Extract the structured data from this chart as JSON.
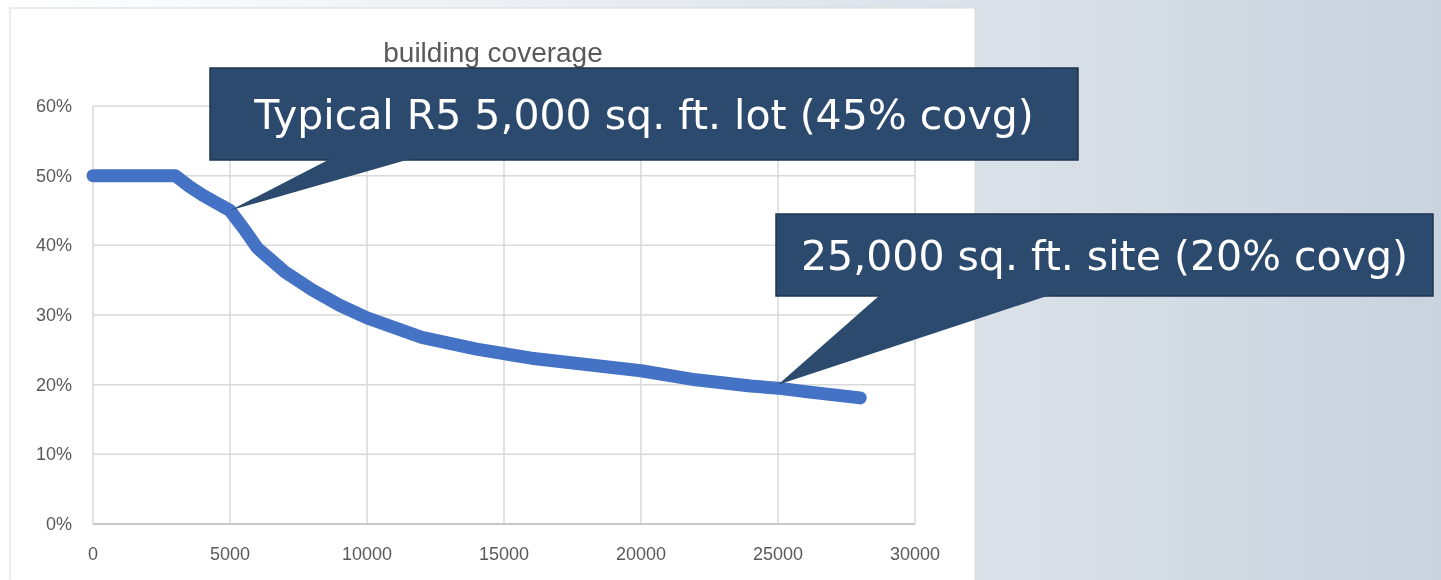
{
  "chart_data": {
    "type": "line",
    "title": "building coverage",
    "x": [
      0,
      1000,
      2000,
      3000,
      3500,
      4000,
      5000,
      5500,
      6000,
      7000,
      8000,
      9000,
      10000,
      12000,
      14000,
      16000,
      18000,
      20000,
      22000,
      24000,
      25000,
      26000,
      28000
    ],
    "series": [
      {
        "color": "#4472c4",
        "values": [
          50,
          50,
          50,
          50,
          48.5,
          47.2,
          45,
          42.4,
          39.6,
          36.2,
          33.6,
          31.4,
          29.6,
          26.8,
          25.1,
          23.8,
          22.9,
          22,
          20.7,
          19.8,
          19.5,
          19,
          18.1
        ]
      }
    ],
    "xlim": [
      0,
      30000
    ],
    "xticks": [
      0,
      5000,
      10000,
      15000,
      20000,
      25000,
      30000
    ],
    "ylim": [
      0,
      60
    ],
    "yticks": [
      {
        "value": 0,
        "label": "0%"
      },
      {
        "value": 10,
        "label": "10%"
      },
      {
        "value": 20,
        "label": "20%"
      },
      {
        "value": 30,
        "label": "30%"
      },
      {
        "value": 40,
        "label": "40%"
      },
      {
        "value": 50,
        "label": "50%"
      },
      {
        "value": 60,
        "label": "60%"
      }
    ],
    "grid": true,
    "line_style": "solid",
    "annotations": [
      {
        "text": "Typical R5 5,000 sq. ft. lot (45% covg)",
        "x": 5000,
        "y": 45
      },
      {
        "text": "25,000 sq. ft. site (20% covg)",
        "x": 25000,
        "y": 20
      }
    ]
  }
}
